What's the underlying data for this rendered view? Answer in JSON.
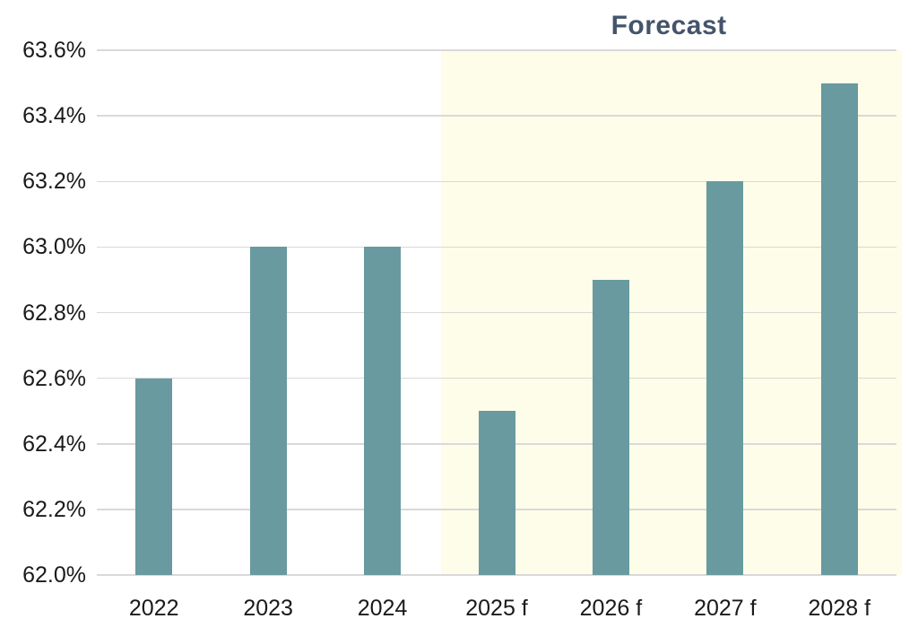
{
  "chart_data": {
    "type": "bar",
    "title": "",
    "categories": [
      "2022",
      "2023",
      "2024",
      "2025 f",
      "2026 f",
      "2027 f",
      "2028 f"
    ],
    "values": [
      62.6,
      63.0,
      63.0,
      62.5,
      62.9,
      63.2,
      63.5
    ],
    "unit": "%",
    "xlabel": "",
    "ylabel": "",
    "ylim": [
      62.0,
      63.6
    ],
    "grid": true,
    "legend": "none",
    "yticks": [
      {
        "value": 62.0,
        "label": "62.0%"
      },
      {
        "value": 62.2,
        "label": "62.2%"
      },
      {
        "value": 62.4,
        "label": "62.4%"
      },
      {
        "value": 62.6,
        "label": "62.6%"
      },
      {
        "value": 62.8,
        "label": "62.8%"
      },
      {
        "value": 63.0,
        "label": "63.0%"
      },
      {
        "value": 63.2,
        "label": "63.2%"
      },
      {
        "value": 63.4,
        "label": "63.4%"
      },
      {
        "value": 63.6,
        "label": "63.6%"
      }
    ],
    "forecast": {
      "label": "Forecast",
      "start_index": 3
    },
    "colors": {
      "bar": "#689a9f",
      "forecast_background": "#fdfde9",
      "forecast_label": "#44546a",
      "gridline": "#d9d9d9",
      "axis_text": "#1a1a1a",
      "background": "#ffffff"
    }
  }
}
